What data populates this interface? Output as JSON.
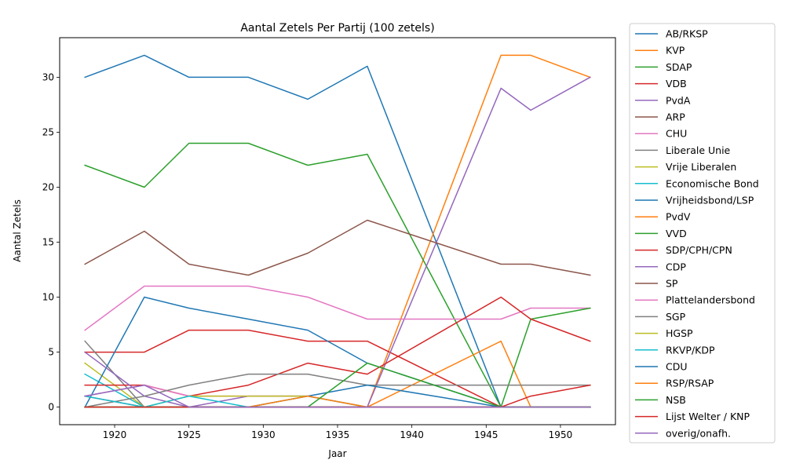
{
  "chart_data": {
    "type": "line",
    "title": "Aantal Zetels Per Partij (100 zetels)",
    "xlabel": "Jaar",
    "ylabel": "Aantal Zetels",
    "x": [
      1918,
      1922,
      1925,
      1929,
      1933,
      1937,
      1946,
      1948,
      1952
    ],
    "xlim": [
      1916.3,
      1953.7
    ],
    "ylim": [
      -1.6,
      33.6
    ],
    "xticks": [
      "1920",
      "1925",
      "1930",
      "1935",
      "1940",
      "1945",
      "1950"
    ],
    "yticks": [
      "0",
      "5",
      "10",
      "15",
      "20",
      "25",
      "30"
    ],
    "grid": false,
    "legend_position": "outside-right",
    "series": [
      {
        "name": "AB/RKSP",
        "color": "#1f77b4",
        "values": [
          30,
          32,
          30,
          30,
          28,
          31,
          0,
          0,
          0
        ]
      },
      {
        "name": "KVP",
        "color": "#ff7f0e",
        "values": [
          0,
          0,
          0,
          0,
          0,
          0,
          32,
          32,
          30
        ]
      },
      {
        "name": "SDAP",
        "color": "#2ca02c",
        "values": [
          22,
          20,
          24,
          24,
          22,
          23,
          0,
          0,
          0
        ]
      },
      {
        "name": "VDB",
        "color": "#d62728",
        "values": [
          5,
          5,
          7,
          7,
          6,
          6,
          0,
          0,
          0
        ]
      },
      {
        "name": "PvdA",
        "color": "#9467bd",
        "values": [
          0,
          0,
          0,
          0,
          0,
          0,
          29,
          27,
          30
        ]
      },
      {
        "name": "ARP",
        "color": "#8c564b",
        "values": [
          13,
          16,
          13,
          12,
          14,
          17,
          13,
          13,
          12
        ]
      },
      {
        "name": "CHU",
        "color": "#e377c2",
        "values": [
          7,
          11,
          11,
          11,
          10,
          8,
          8,
          9,
          9
        ]
      },
      {
        "name": "Liberale Unie",
        "color": "#7f7f7f",
        "values": [
          6,
          0,
          0,
          0,
          0,
          0,
          0,
          0,
          0
        ]
      },
      {
        "name": "Vrije Liberalen",
        "color": "#bcbd22",
        "values": [
          4,
          0,
          0,
          0,
          0,
          0,
          0,
          0,
          0
        ]
      },
      {
        "name": "Economische Bond",
        "color": "#17becf",
        "values": [
          3,
          0,
          0,
          0,
          0,
          0,
          0,
          0,
          0
        ]
      },
      {
        "name": "Vrijheidsbond/LSP",
        "color": "#1f77b4",
        "values": [
          0,
          10,
          9,
          8,
          7,
          4,
          0,
          0,
          0
        ]
      },
      {
        "name": "PvdV",
        "color": "#ff7f0e",
        "values": [
          0,
          0,
          0,
          0,
          0,
          0,
          6,
          0,
          0
        ]
      },
      {
        "name": "VVD",
        "color": "#2ca02c",
        "values": [
          0,
          0,
          0,
          0,
          0,
          0,
          0,
          8,
          9
        ]
      },
      {
        "name": "SDP/CPH/CPN",
        "color": "#d62728",
        "values": [
          2,
          2,
          1,
          2,
          4,
          3,
          10,
          8,
          6
        ]
      },
      {
        "name": "CDP",
        "color": "#9467bd",
        "values": [
          5,
          1,
          0,
          1,
          1,
          0,
          0,
          0,
          0
        ]
      },
      {
        "name": "SP",
        "color": "#8c564b",
        "values": [
          1,
          0,
          0,
          0,
          0,
          0,
          0,
          0,
          0
        ]
      },
      {
        "name": "Plattelandersbond",
        "color": "#e377c2",
        "values": [
          1,
          2,
          1,
          1,
          1,
          0,
          0,
          0,
          0
        ]
      },
      {
        "name": "SGP",
        "color": "#7f7f7f",
        "values": [
          0,
          1,
          2,
          3,
          3,
          2,
          2,
          2,
          2
        ]
      },
      {
        "name": "HGSP",
        "color": "#bcbd22",
        "values": [
          0,
          0,
          1,
          1,
          1,
          0,
          0,
          0,
          0
        ]
      },
      {
        "name": "RKVP/KDP",
        "color": "#17becf",
        "values": [
          1,
          0,
          1,
          0,
          1,
          0,
          0,
          0,
          0
        ]
      },
      {
        "name": "CDU",
        "color": "#1f77b4",
        "values": [
          0,
          0,
          0,
          0,
          1,
          2,
          0,
          0,
          0
        ]
      },
      {
        "name": "RSP/RSAP",
        "color": "#ff7f0e",
        "values": [
          0,
          0,
          0,
          0,
          1,
          0,
          0,
          0,
          0
        ]
      },
      {
        "name": "NSB",
        "color": "#2ca02c",
        "values": [
          0,
          0,
          0,
          0,
          0,
          4,
          0,
          0,
          0
        ]
      },
      {
        "name": "Lijst Welter / KNP",
        "color": "#d62728",
        "values": [
          0,
          0,
          0,
          0,
          0,
          0,
          0,
          1,
          2
        ]
      },
      {
        "name": "overig/onafh.",
        "color": "#9467bd",
        "values": [
          1,
          2,
          0,
          0,
          0,
          0,
          0,
          0,
          0
        ]
      }
    ]
  }
}
